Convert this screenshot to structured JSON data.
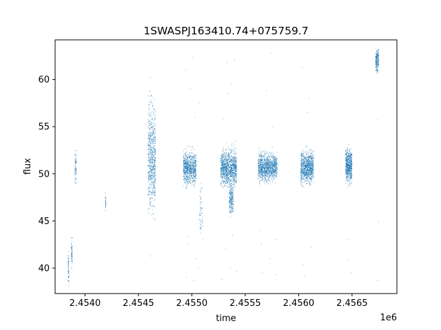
{
  "chart_data": {
    "type": "scatter",
    "title": "1SWASPJ163410.74+075759.7",
    "xlabel": "time",
    "ylabel": "flux",
    "x_offset_label": "1e6",
    "xlim": [
      2453720,
      2456920
    ],
    "ylim": [
      37.3,
      64.2
    ],
    "x_ticks": [
      {
        "value": 2454000,
        "label": "2.4540"
      },
      {
        "value": 2454500,
        "label": "2.4545"
      },
      {
        "value": 2455000,
        "label": "2.4550"
      },
      {
        "value": 2455500,
        "label": "2.4555"
      },
      {
        "value": 2456000,
        "label": "2.4560"
      },
      {
        "value": 2456500,
        "label": "2.4565"
      }
    ],
    "y_ticks": [
      {
        "value": 40,
        "label": "40"
      },
      {
        "value": 45,
        "label": "45"
      },
      {
        "value": 50,
        "label": "50"
      },
      {
        "value": 55,
        "label": "55"
      },
      {
        "value": 60,
        "label": "60"
      }
    ],
    "grid": false,
    "marker_color": "#1f77b4",
    "clusters": [
      {
        "x_start": 2453840,
        "x_end": 2453850,
        "y_center": 39.9,
        "spread": 0.8,
        "points": 60
      },
      {
        "x_start": 2453870,
        "x_end": 2453882,
        "y_center": 41.6,
        "spread": 0.7,
        "points": 60
      },
      {
        "x_start": 2453905,
        "x_end": 2453918,
        "y_center": 50.8,
        "spread": 0.8,
        "points": 70
      },
      {
        "x_start": 2454190,
        "x_end": 2454196,
        "y_center": 46.9,
        "spread": 0.5,
        "points": 30
      },
      {
        "x_start": 2454590,
        "x_end": 2454660,
        "y_center": 51.8,
        "spread": 2.6,
        "points": 700
      },
      {
        "x_start": 2454920,
        "x_end": 2455040,
        "y_center": 50.6,
        "spread": 0.8,
        "points": 800
      },
      {
        "x_start": 2455070,
        "x_end": 2455100,
        "y_center": 46.0,
        "spread": 1.5,
        "points": 60
      },
      {
        "x_start": 2455270,
        "x_end": 2455420,
        "y_center": 50.6,
        "spread": 0.9,
        "points": 1100
      },
      {
        "x_start": 2455350,
        "x_end": 2455390,
        "y_center": 47.3,
        "spread": 0.8,
        "points": 220
      },
      {
        "x_start": 2455620,
        "x_end": 2455800,
        "y_center": 50.7,
        "spread": 0.7,
        "points": 1100
      },
      {
        "x_start": 2456020,
        "x_end": 2456140,
        "y_center": 50.7,
        "spread": 0.8,
        "points": 900
      },
      {
        "x_start": 2456440,
        "x_end": 2456500,
        "y_center": 50.9,
        "spread": 0.8,
        "points": 600
      },
      {
        "x_start": 2456720,
        "x_end": 2456750,
        "y_center": 62.0,
        "spread": 0.6,
        "points": 200
      }
    ],
    "outliers": [
      [
        2454603,
        58.8
      ],
      [
        2454610,
        60.2
      ],
      [
        2454618,
        41.3
      ],
      [
        2454625,
        57.5
      ],
      [
        2454640,
        45.8
      ],
      [
        2454945,
        61.0
      ],
      [
        2454950,
        39.0
      ],
      [
        2454960,
        42.5
      ],
      [
        2454970,
        43.3
      ],
      [
        2454985,
        59.0
      ],
      [
        2455010,
        62.3
      ],
      [
        2455020,
        38.7
      ],
      [
        2455030,
        56.0
      ],
      [
        2455040,
        41.0
      ],
      [
        2455060,
        40.0
      ],
      [
        2455075,
        57.5
      ],
      [
        2455090,
        44.5
      ],
      [
        2455100,
        43.0
      ],
      [
        2455280,
        38.8
      ],
      [
        2455300,
        55.8
      ],
      [
        2455320,
        42.0
      ],
      [
        2455330,
        61.8
      ],
      [
        2455340,
        58.5
      ],
      [
        2455360,
        40.0
      ],
      [
        2455370,
        59.5
      ],
      [
        2455380,
        43.5
      ],
      [
        2455400,
        62.0
      ],
      [
        2455410,
        53.5
      ],
      [
        2455420,
        39.7
      ],
      [
        2455640,
        44.0
      ],
      [
        2455650,
        42.5
      ],
      [
        2455660,
        39.5
      ],
      [
        2455700,
        58.8
      ],
      [
        2455730,
        41.0
      ],
      [
        2455750,
        62.8
      ],
      [
        2455760,
        55.0
      ],
      [
        2455780,
        39.3
      ],
      [
        2455790,
        43.0
      ],
      [
        2456030,
        61.3
      ],
      [
        2456040,
        40.3
      ],
      [
        2456060,
        39.2
      ],
      [
        2456080,
        56.5
      ],
      [
        2456100,
        58.0
      ],
      [
        2456120,
        42.2
      ],
      [
        2456460,
        40.8
      ],
      [
        2456470,
        43.0
      ],
      [
        2456490,
        39.5
      ],
      [
        2456725,
        46.4
      ],
      [
        2456735,
        38.7
      ],
      [
        2456740,
        55.7
      ],
      [
        2456748,
        44.9
      ]
    ]
  }
}
